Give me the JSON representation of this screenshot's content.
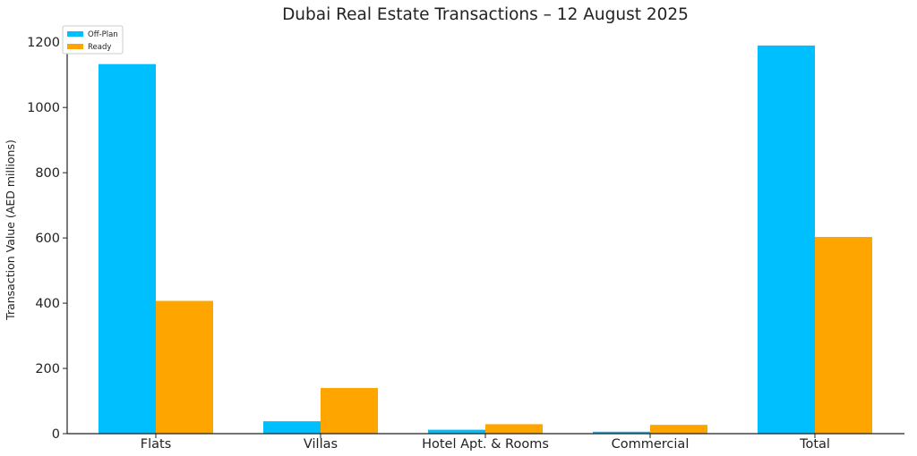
{
  "chart_data": {
    "type": "bar",
    "title": "Dubai Real Estate Transactions – 12 August 2025",
    "xlabel": "",
    "ylabel": "Transaction Value (AED millions)",
    "categories": [
      "Flats",
      "Villas",
      "Hotel Apt. & Rooms",
      "Commercial",
      "Total"
    ],
    "series": [
      {
        "name": "Off-Plan",
        "color": "#00bfff",
        "values": [
          1133,
          38,
          12,
          6,
          1190
        ]
      },
      {
        "name": "Ready",
        "color": "#ffa500",
        "values": [
          407,
          140,
          29,
          27,
          603
        ]
      }
    ],
    "ylim": [
      0,
      1250
    ],
    "yticks": [
      0,
      200,
      400,
      600,
      800,
      1000,
      1200
    ],
    "grid": false,
    "legend_position": "top-left"
  }
}
